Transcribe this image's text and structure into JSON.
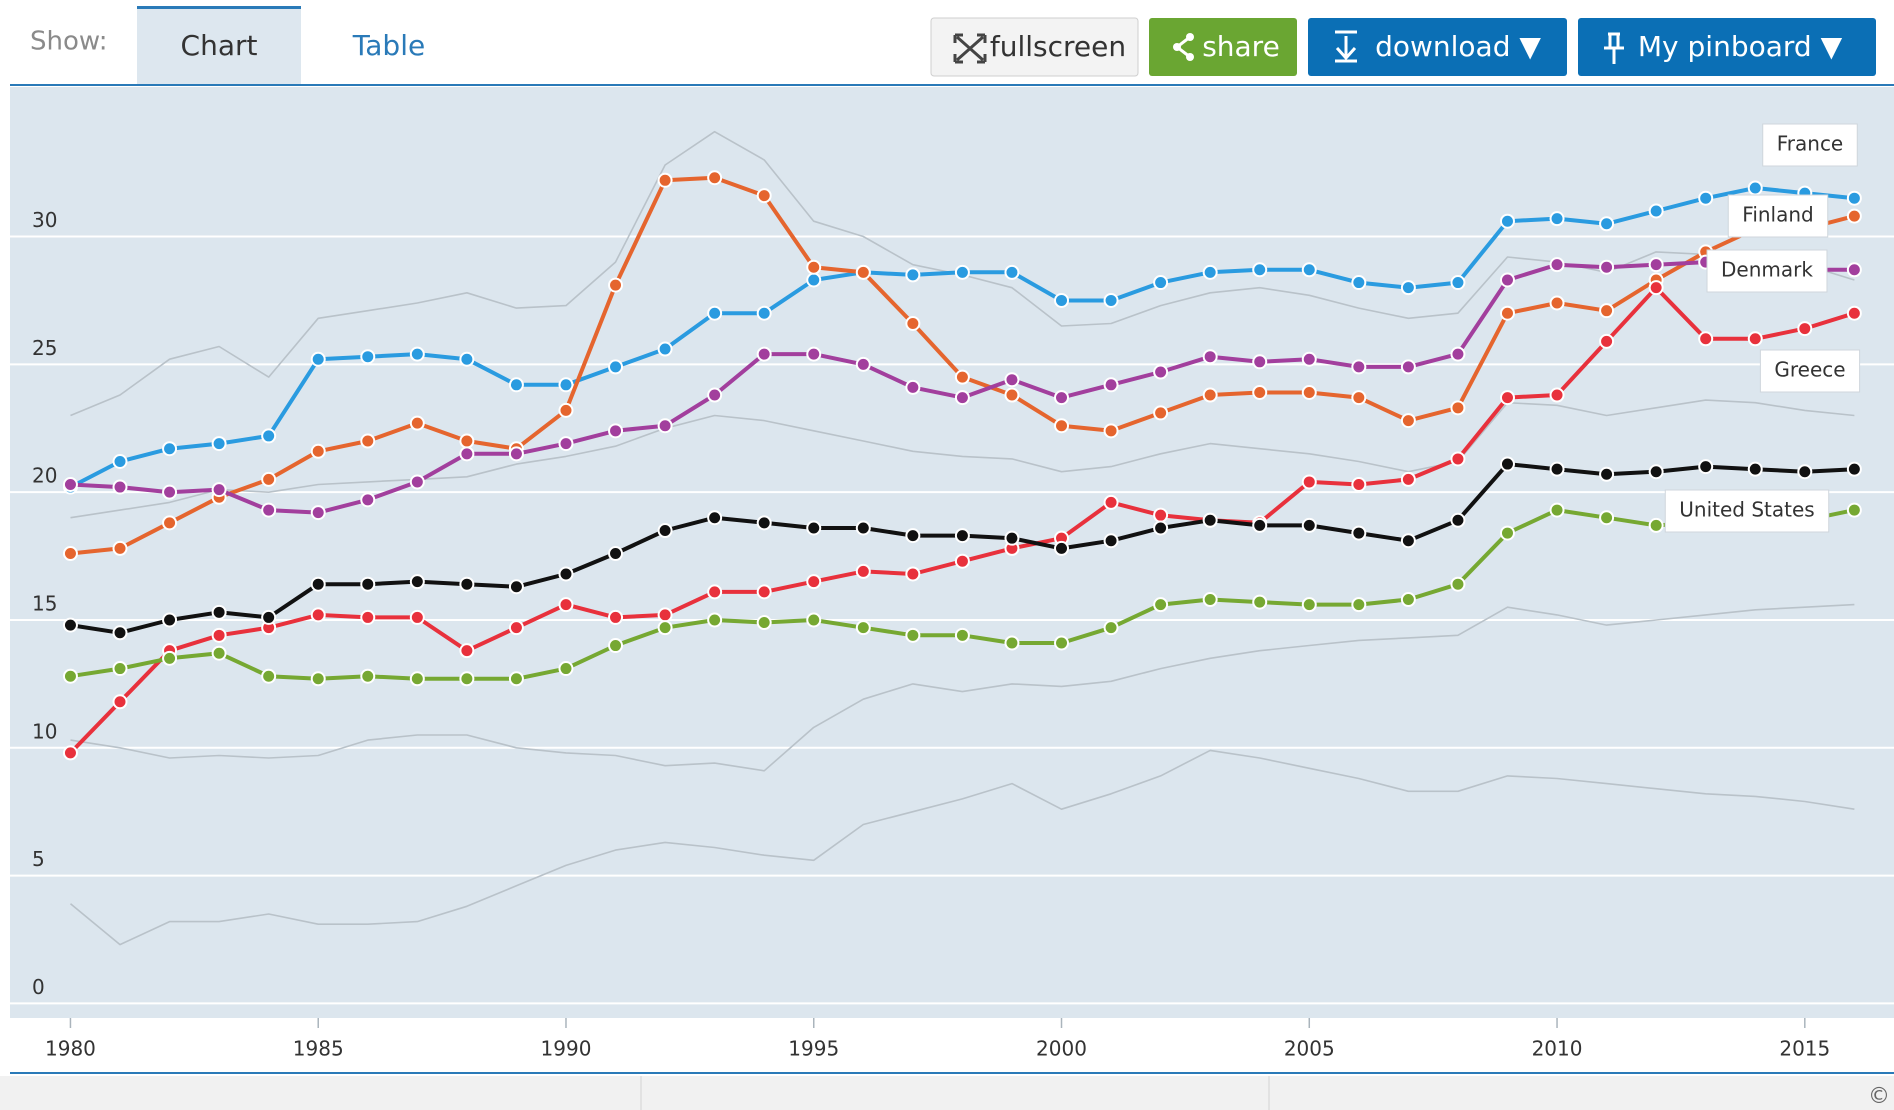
{
  "toolbar": {
    "show_label": "Show:",
    "tabs": [
      "Chart",
      "Table"
    ],
    "buttons": [
      "fullscreen",
      "share",
      "download ▼",
      "My pinboard ▼"
    ]
  },
  "footer": {
    "copyright": "©"
  },
  "chart_data": {
    "type": "line",
    "x": [
      1980,
      1981,
      1982,
      1983,
      1984,
      1985,
      1986,
      1987,
      1988,
      1989,
      1990,
      1991,
      1992,
      1993,
      1994,
      1995,
      1996,
      1997,
      1998,
      1999,
      2000,
      2001,
      2002,
      2003,
      2004,
      2005,
      2006,
      2007,
      2008,
      2009,
      2010,
      2011,
      2012,
      2013,
      2014,
      2015,
      2016
    ],
    "xlim": [
      1978.78,
      2016.8
    ],
    "xticks": [
      1980,
      1985,
      1990,
      1995,
      2000,
      2005,
      2010,
      2015
    ],
    "ylim": [
      -0.57,
      35.85
    ],
    "yticks": [
      0,
      5,
      10,
      15,
      20,
      25,
      30
    ],
    "grid": true,
    "series": [
      {
        "color": "#b9c2c9",
        "marker": false,
        "values": [
          23.0,
          23.8,
          25.2,
          25.7,
          24.5,
          26.8,
          27.1,
          27.4,
          27.8,
          27.2,
          27.3,
          29.0,
          32.8,
          34.1,
          33.0,
          30.6,
          30.0,
          28.9,
          28.5,
          28.0,
          26.5,
          26.6,
          27.3,
          27.8,
          28.0,
          27.7,
          27.2,
          26.8,
          27.0,
          29.2,
          29.0,
          28.6,
          29.4,
          29.3,
          29.1,
          28.9,
          28.3
        ]
      },
      {
        "color": "#b9c2c9",
        "marker": false,
        "values": [
          3.9,
          2.3,
          3.2,
          3.2,
          3.5,
          3.1,
          3.1,
          3.2,
          3.8,
          4.6,
          5.4,
          6.0,
          6.3,
          6.1,
          5.8,
          5.6,
          7.0,
          7.5,
          8.0,
          8.6,
          7.6,
          8.2,
          8.9,
          9.9,
          9.6,
          9.2,
          8.8,
          8.3,
          8.3,
          8.9,
          8.8,
          8.6,
          8.4,
          8.2,
          8.1,
          7.9,
          7.6
        ]
      },
      {
        "color": "#b9c2c9",
        "marker": false,
        "values": [
          10.3,
          10.0,
          9.6,
          9.7,
          9.6,
          9.7,
          10.3,
          10.5,
          10.5,
          10.0,
          9.8,
          9.7,
          9.3,
          9.4,
          9.1,
          10.8,
          11.9,
          12.5,
          12.2,
          12.5,
          12.4,
          12.6,
          13.1,
          13.5,
          13.8,
          14.0,
          14.2,
          14.3,
          14.4,
          15.5,
          15.2,
          14.8,
          15.0,
          15.2,
          15.4,
          15.5,
          15.6
        ]
      },
      {
        "color": "#b9c2c9",
        "marker": false,
        "values": [
          19.0,
          19.3,
          19.6,
          20.1,
          20.0,
          20.3,
          20.4,
          20.5,
          20.6,
          21.1,
          21.4,
          21.8,
          22.5,
          23.0,
          22.8,
          22.4,
          22.0,
          21.6,
          21.4,
          21.3,
          20.8,
          21.0,
          21.5,
          21.9,
          21.7,
          21.5,
          21.2,
          20.8,
          21.2,
          23.5,
          23.4,
          23.0,
          23.3,
          23.6,
          23.5,
          23.2,
          23.0
        ]
      },
      {
        "name": "France",
        "color": "#2a9be0",
        "marker": true,
        "values": [
          20.2,
          21.2,
          21.7,
          21.9,
          22.2,
          25.2,
          25.3,
          25.4,
          25.2,
          24.2,
          24.2,
          24.9,
          25.6,
          27.0,
          27.0,
          28.3,
          28.6,
          28.5,
          28.6,
          28.6,
          27.5,
          27.5,
          28.2,
          28.6,
          28.7,
          28.7,
          28.2,
          28.0,
          28.2,
          30.6,
          30.7,
          30.5,
          31.0,
          31.5,
          31.9,
          31.7,
          31.5
        ]
      },
      {
        "name": "Finland",
        "color": "#e5652e",
        "marker": true,
        "values": [
          17.6,
          17.8,
          18.8,
          19.8,
          20.5,
          21.6,
          22.0,
          22.7,
          22.0,
          21.7,
          23.2,
          28.1,
          32.2,
          32.3,
          31.6,
          28.8,
          28.6,
          26.6,
          24.5,
          23.8,
          22.6,
          22.4,
          23.1,
          23.8,
          23.9,
          23.9,
          23.7,
          22.8,
          23.3,
          27.0,
          27.4,
          27.1,
          28.3,
          29.4,
          30.3,
          30.3,
          30.8
        ]
      },
      {
        "name": "Denmark",
        "color": "#a23f9d",
        "marker": true,
        "values": [
          20.3,
          20.2,
          20.0,
          20.1,
          19.3,
          19.2,
          19.7,
          20.4,
          21.5,
          21.5,
          21.9,
          22.4,
          22.6,
          23.8,
          25.4,
          25.4,
          25.0,
          24.1,
          23.7,
          24.4,
          23.7,
          24.2,
          24.7,
          25.3,
          25.1,
          25.2,
          24.9,
          24.9,
          25.4,
          28.3,
          28.9,
          28.8,
          28.9,
          29.0,
          28.9,
          28.7,
          28.7
        ]
      },
      {
        "name": "Greece",
        "color": "#e8313c",
        "marker": true,
        "values": [
          9.8,
          11.8,
          13.8,
          14.4,
          14.7,
          15.2,
          15.1,
          15.1,
          13.8,
          14.7,
          15.6,
          15.1,
          15.2,
          16.1,
          16.1,
          16.5,
          16.9,
          16.8,
          17.3,
          17.8,
          18.2,
          19.6,
          19.1,
          18.9,
          18.8,
          20.4,
          20.3,
          20.5,
          21.3,
          23.7,
          23.8,
          25.9,
          28.0,
          26.0,
          26.0,
          26.4,
          27.0
        ]
      },
      {
        "color": "#111111",
        "marker": true,
        "values": [
          14.8,
          14.5,
          15.0,
          15.3,
          15.1,
          16.4,
          16.4,
          16.5,
          16.4,
          16.3,
          16.8,
          17.6,
          18.5,
          19.0,
          18.8,
          18.6,
          18.6,
          18.3,
          18.3,
          18.2,
          17.8,
          18.1,
          18.6,
          18.9,
          18.7,
          18.7,
          18.4,
          18.1,
          18.9,
          21.1,
          20.9,
          20.7,
          20.8,
          21.0,
          20.9,
          20.8,
          20.9
        ]
      },
      {
        "name": "United States",
        "color": "#76a832",
        "marker": true,
        "values": [
          12.8,
          13.1,
          13.5,
          13.7,
          12.8,
          12.7,
          12.8,
          12.7,
          12.7,
          12.7,
          13.1,
          14.0,
          14.7,
          15.0,
          14.9,
          15.0,
          14.7,
          14.4,
          14.4,
          14.1,
          14.1,
          14.7,
          15.6,
          15.8,
          15.7,
          15.6,
          15.6,
          15.8,
          16.4,
          18.4,
          19.3,
          19.0,
          18.7,
          18.8,
          18.8,
          18.9,
          19.3
        ]
      }
    ]
  }
}
